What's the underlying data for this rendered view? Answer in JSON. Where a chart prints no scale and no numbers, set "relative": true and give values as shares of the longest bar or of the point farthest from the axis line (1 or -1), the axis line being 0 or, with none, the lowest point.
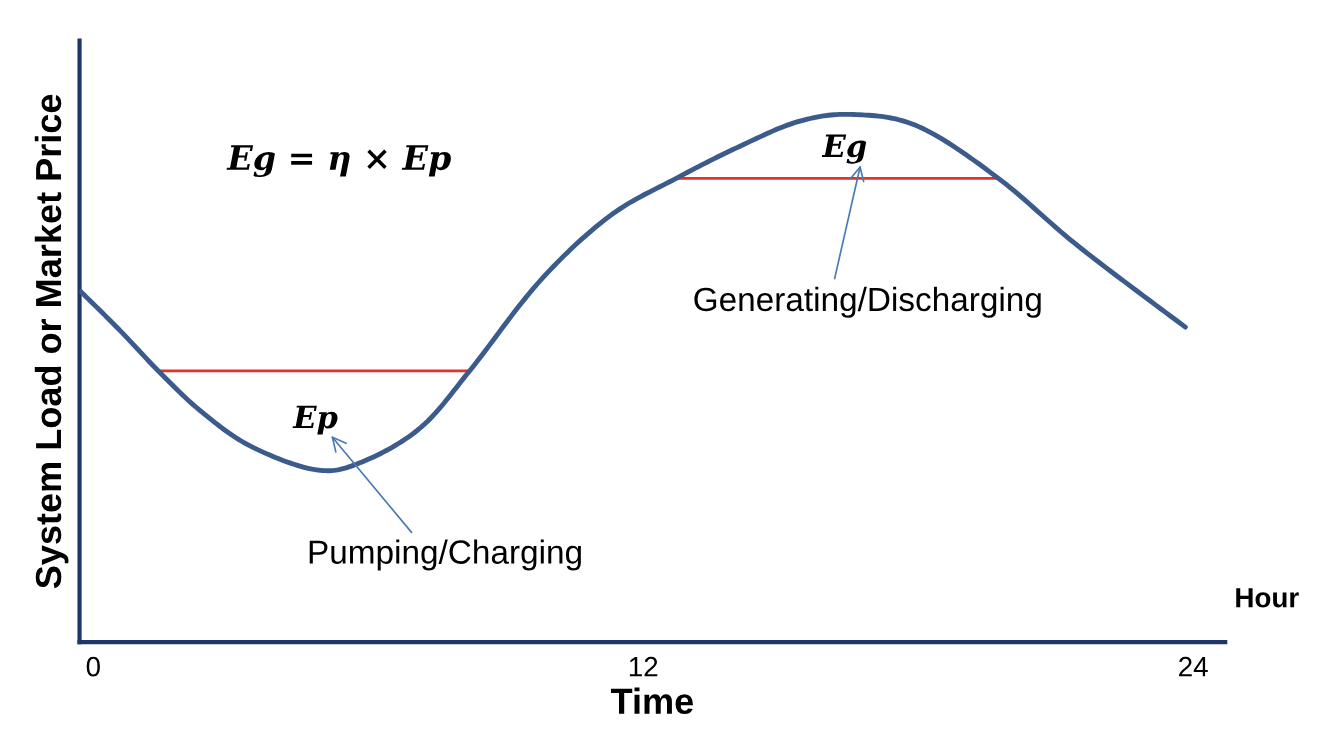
{
  "chart_data": {
    "type": "line",
    "relative": true,
    "xlabel": "Time",
    "ylabel": "System Load or Market Price",
    "xlim": [
      -0.3,
      24.7
    ],
    "xticks": [
      0,
      12,
      24
    ],
    "grid": false,
    "legend": false,
    "marker": "none",
    "line_style": "solid",
    "series": [
      {
        "color": "#3b5b8c",
        "x": [
          -0.28,
          0.59,
          1.42,
          2.33,
          3.42,
          4.84,
          5.82,
          7.12,
          8.21,
          9.74,
          11.26,
          12.72,
          14.09,
          15.4,
          16.59,
          18.01,
          19.75,
          21.5,
          23.83
        ],
        "values": [
          0.665,
          0.59,
          0.514,
          0.439,
          0.372,
          0.327,
          0.34,
          0.405,
          0.514,
          0.684,
          0.807,
          0.879,
          0.939,
          0.987,
          1.0,
          0.977,
          0.879,
          0.75,
          0.597
        ]
      },
      {
        "type": "line",
        "color": "#e8302a",
        "x": [
          1.42,
          8.21
        ],
        "values": [
          0.514,
          0.514
        ]
      },
      {
        "type": "line",
        "color": "#e8302a",
        "x": [
          12.72,
          19.75
        ],
        "values": [
          0.879,
          0.879
        ]
      }
    ],
    "annotations": [
      "Eg = η × Ep",
      "Hour",
      "Ep",
      "Eg",
      "Pumping/Charging",
      "Generating/Discharging"
    ]
  }
}
